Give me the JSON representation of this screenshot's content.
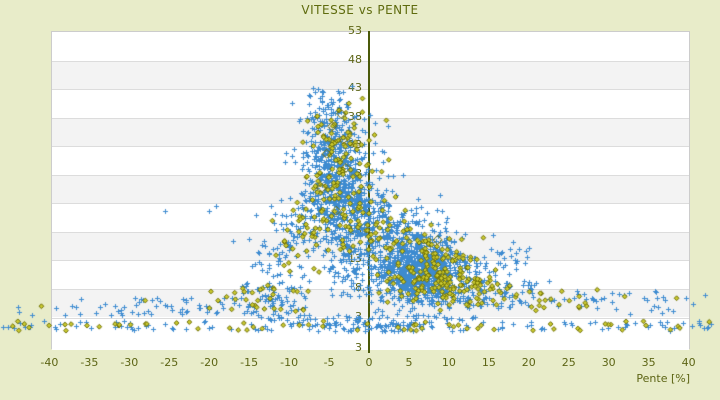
{
  "title": "VITESSE vs PENTE",
  "colors": {
    "background": "#e8ecc9",
    "plot_band_white": "#ffffff",
    "plot_band_gray": "#f3f3f3",
    "gridline": "#dcdcdc",
    "plot_border": "#cccccc",
    "axis_line": "#4b5a0a",
    "label_text": "#5c6414",
    "series_blue": "#3d8bd0",
    "series_olive_stroke": "#6d6d00",
    "series_olive_fill": "#caca30"
  },
  "chart_data": {
    "type": "scatter",
    "title": "VITESSE vs PENTE",
    "xlabel": "Pente [%]",
    "ylabel": "",
    "xlim": [
      -40,
      40
    ],
    "ylim": [
      3,
      53
    ],
    "x_ticks": [
      -40,
      -35,
      -30,
      -25,
      -20,
      -15,
      -10,
      -5,
      0,
      5,
      10,
      15,
      20,
      25,
      30,
      35,
      40
    ],
    "y_ticks": [
      53,
      48,
      43,
      38,
      33,
      28,
      23,
      18,
      13,
      8,
      3
    ],
    "y_axis_bottom_label": "3",
    "grid": "horizontal-bands-alternating",
    "legend": "none",
    "seed": 20240613,
    "series": [
      {
        "name": "vitesse-blue",
        "marker": "plus",
        "color": "#3d8bd0",
        "clusters": [
          {
            "kind": "gauss",
            "n": 500,
            "x": [
              6.5,
              2.2
            ],
            "y": [
              10,
              2.2
            ]
          },
          {
            "kind": "gauss",
            "n": 400,
            "x": [
              5.5,
              3.2
            ],
            "y": [
              11.5,
              3.2
            ]
          },
          {
            "kind": "line",
            "n": 320,
            "from": [
              -1,
              23
            ],
            "to": [
              10,
              11
            ],
            "jitter": [
              1.8,
              3.2
            ]
          },
          {
            "kind": "gauss",
            "n": 420,
            "x": [
              -2.5,
              2.0
            ],
            "y": [
              20,
              6.0
            ]
          },
          {
            "kind": "gauss",
            "n": 300,
            "x": [
              -4.5,
              2.0
            ],
            "y": [
              28,
              5.0
            ]
          },
          {
            "kind": "line",
            "n": 200,
            "from": [
              -12,
              9
            ],
            "to": [
              -4,
              32
            ],
            "jitter": [
              1.8,
              3.8
            ]
          },
          {
            "kind": "gauss",
            "n": 80,
            "x": [
              -4.8,
              1.5
            ],
            "y": [
              37.5,
              2.0
            ]
          },
          {
            "kind": "gauss",
            "n": 14,
            "x": [
              -5.8,
              1.2
            ],
            "y": [
              42.2,
              0.8
            ]
          },
          {
            "kind": "uniform",
            "n": 90,
            "x": [
              11,
              21
            ],
            "y": [
              4.5,
              9.5
            ]
          },
          {
            "kind": "uniform",
            "n": 40,
            "x": [
              13,
              20
            ],
            "y": [
              9.5,
              15
            ]
          },
          {
            "kind": "uniform",
            "n": 35,
            "x": [
              21,
              40
            ],
            "y": [
              3.5,
              7.5
            ]
          },
          {
            "kind": "uniform",
            "n": 60,
            "x": [
              -16,
              -8
            ],
            "y": [
              3.5,
              9
            ]
          },
          {
            "kind": "uniform",
            "n": 45,
            "x": [
              -30,
              -16
            ],
            "y": [
              3.2,
              6.5
            ]
          },
          {
            "kind": "uniform",
            "n": 18,
            "x": [
              -44,
              -30
            ],
            "y": [
              3.2,
              5.5
            ]
          },
          {
            "kind": "uniform",
            "n": 130,
            "x": [
              -46,
              43
            ],
            "y": [
              0.5,
              2.2
            ]
          },
          {
            "kind": "uniform",
            "n": 50,
            "x": [
              -14,
              14
            ],
            "y": [
              2.3,
              3.4
            ]
          },
          {
            "kind": "gauss",
            "n": 60,
            "x": [
              1.5,
              4.0
            ],
            "y": [
              1.2,
              0.8
            ]
          }
        ],
        "points": [
          [
            -20,
            21.5
          ],
          [
            -19.2,
            22.3
          ],
          [
            -25.5,
            21.5
          ],
          [
            -17,
            16.2
          ],
          [
            -14.2,
            20.8
          ],
          [
            15.5,
            17.2
          ],
          [
            18,
            16
          ],
          [
            22.5,
            9.2
          ],
          [
            26,
            7.4
          ],
          [
            29,
            6.1
          ],
          [
            36,
            6.3
          ],
          [
            37,
            5.9
          ],
          [
            40.5,
            5.2
          ],
          [
            42,
            6.8
          ],
          [
            -36,
            6.1
          ],
          [
            -33,
            5.2
          ]
        ]
      },
      {
        "name": "vitesse-olive",
        "marker": "diamond",
        "color": "#6d6d00",
        "fill": "#caca30",
        "clusters": [
          {
            "kind": "gauss",
            "n": 110,
            "x": [
              7.5,
              3.5
            ],
            "y": [
              11,
              3.0
            ]
          },
          {
            "kind": "line",
            "n": 85,
            "from": [
              0,
              20
            ],
            "to": [
              12,
              9
            ],
            "jitter": [
              2.0,
              3.0
            ]
          },
          {
            "kind": "gauss",
            "n": 75,
            "x": [
              -3.5,
              2.2
            ],
            "y": [
              27,
              5.5
            ]
          },
          {
            "kind": "line",
            "n": 55,
            "from": [
              -11,
              11
            ],
            "to": [
              -4,
              33
            ],
            "jitter": [
              1.6,
              3.5
            ]
          },
          {
            "kind": "gauss",
            "n": 25,
            "x": [
              -3.8,
              1.5
            ],
            "y": [
              35.5,
              2.2
            ]
          },
          {
            "kind": "uniform",
            "n": 45,
            "x": [
              9,
              17
            ],
            "y": [
              5,
              10
            ]
          },
          {
            "kind": "uniform",
            "n": 22,
            "x": [
              17,
              30
            ],
            "y": [
              4,
              8
            ]
          },
          {
            "kind": "uniform",
            "n": 28,
            "x": [
              -20,
              -8
            ],
            "y": [
              3.5,
              8
            ]
          },
          {
            "kind": "uniform",
            "n": 65,
            "x": [
              -45,
              43
            ],
            "y": [
              0.5,
              2.2
            ]
          },
          {
            "kind": "uniform",
            "n": 25,
            "x": [
              -9,
              2
            ],
            "y": [
              14,
              24
            ]
          }
        ],
        "points": [
          [
            13.5,
            13
          ],
          [
            -28,
            5.8
          ],
          [
            32,
            6.5
          ],
          [
            38.5,
            6.2
          ],
          [
            -41,
            4.8
          ]
        ],
        "large_points": [
          [
            -4.6,
            36.3
          ],
          [
            -3.2,
            34
          ],
          [
            -5.3,
            31.5
          ],
          [
            -2.9,
            29
          ],
          [
            -5.9,
            25.5
          ],
          [
            -4.1,
            21.5
          ],
          [
            8.6,
            16.4
          ],
          [
            -3.5,
            38.5
          ]
        ]
      }
    ]
  }
}
